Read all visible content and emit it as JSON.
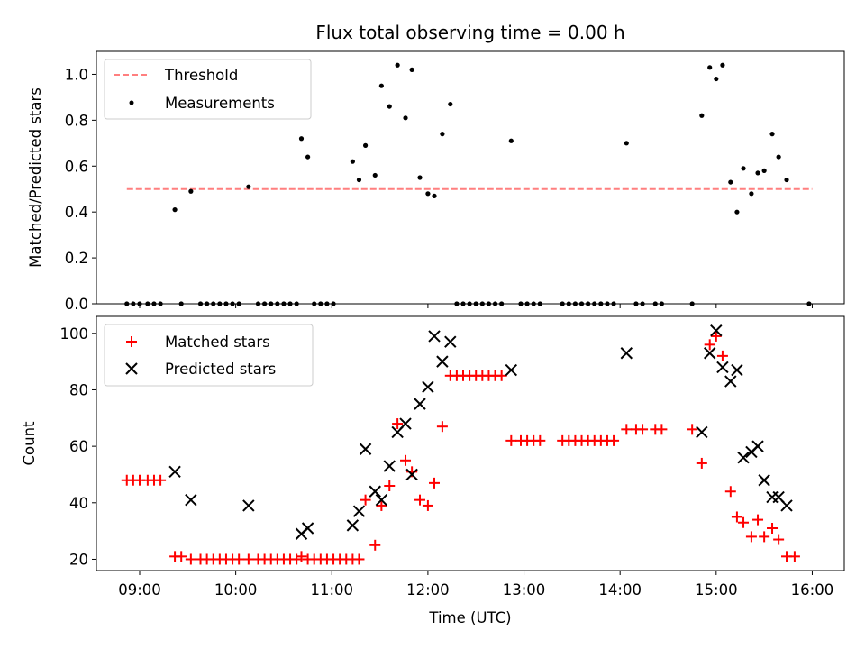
{
  "figure": {
    "title": "Flux total observing time = 0.00 h",
    "xlabel": "Time (UTC)"
  },
  "colors": {
    "threshold": "#ff7f7f",
    "measurements": "#000000",
    "matched": "#ff0000",
    "predicted": "#000000"
  },
  "chart_data": [
    {
      "type": "scatter",
      "panel": "top",
      "ylabel": "Matched/Predicted stars",
      "xlim": [
        "08:33",
        "16:20"
      ],
      "ylim": [
        0,
        1.1
      ],
      "yticks": [
        0.0,
        0.2,
        0.4,
        0.6,
        0.8,
        1.0
      ],
      "ytick_labels": [
        "0.0",
        "0.2",
        "0.4",
        "0.6",
        "0.8",
        "1.0"
      ],
      "grid": false,
      "legend": {
        "placement": "top-left",
        "entries": [
          "Threshold",
          "Measurements"
        ]
      },
      "threshold": {
        "name": "Threshold",
        "y": 0.5,
        "x_range": [
          "08:52",
          "16:00"
        ],
        "style": "dashed"
      },
      "series": [
        {
          "name": "Measurements",
          "points": [
            [
              "08:52",
              0.0
            ],
            [
              "08:56",
              0.0
            ],
            [
              "09:00",
              0.0
            ],
            [
              "09:05",
              0.0
            ],
            [
              "09:09",
              0.0
            ],
            [
              "09:13",
              0.0
            ],
            [
              "09:22",
              0.41
            ],
            [
              "09:26",
              0.0
            ],
            [
              "09:32",
              0.49
            ],
            [
              "09:38",
              0.0
            ],
            [
              "09:42",
              0.0
            ],
            [
              "09:46",
              0.0
            ],
            [
              "09:50",
              0.0
            ],
            [
              "09:54",
              0.0
            ],
            [
              "09:58",
              0.0
            ],
            [
              "10:02",
              0.0
            ],
            [
              "10:08",
              0.51
            ],
            [
              "10:14",
              0.0
            ],
            [
              "10:18",
              0.0
            ],
            [
              "10:22",
              0.0
            ],
            [
              "10:26",
              0.0
            ],
            [
              "10:30",
              0.0
            ],
            [
              "10:34",
              0.0
            ],
            [
              "10:38",
              0.0
            ],
            [
              "10:41",
              0.72
            ],
            [
              "10:45",
              0.64
            ],
            [
              "10:49",
              0.0
            ],
            [
              "10:53",
              0.0
            ],
            [
              "10:57",
              0.0
            ],
            [
              "11:01",
              0.0
            ],
            [
              "11:13",
              0.62
            ],
            [
              "11:17",
              0.54
            ],
            [
              "11:21",
              0.69
            ],
            [
              "11:27",
              0.56
            ],
            [
              "11:31",
              0.95
            ],
            [
              "11:36",
              0.86
            ],
            [
              "11:41",
              1.04
            ],
            [
              "11:46",
              0.81
            ],
            [
              "11:50",
              1.02
            ],
            [
              "11:55",
              0.55
            ],
            [
              "12:00",
              0.48
            ],
            [
              "12:04",
              0.47
            ],
            [
              "12:09",
              0.74
            ],
            [
              "12:14",
              0.87
            ],
            [
              "12:18",
              0.0
            ],
            [
              "12:22",
              0.0
            ],
            [
              "12:26",
              0.0
            ],
            [
              "12:30",
              0.0
            ],
            [
              "12:34",
              0.0
            ],
            [
              "12:38",
              0.0
            ],
            [
              "12:42",
              0.0
            ],
            [
              "12:46",
              0.0
            ],
            [
              "12:52",
              0.71
            ],
            [
              "12:58",
              0.0
            ],
            [
              "13:02",
              0.0
            ],
            [
              "13:06",
              0.0
            ],
            [
              "13:10",
              0.0
            ],
            [
              "13:24",
              0.0
            ],
            [
              "13:28",
              0.0
            ],
            [
              "13:32",
              0.0
            ],
            [
              "13:36",
              0.0
            ],
            [
              "13:40",
              0.0
            ],
            [
              "13:44",
              0.0
            ],
            [
              "13:48",
              0.0
            ],
            [
              "13:52",
              0.0
            ],
            [
              "13:56",
              0.0
            ],
            [
              "14:04",
              0.7
            ],
            [
              "14:10",
              0.0
            ],
            [
              "14:14",
              0.0
            ],
            [
              "14:22",
              0.0
            ],
            [
              "14:26",
              0.0
            ],
            [
              "14:45",
              0.0
            ],
            [
              "14:51",
              0.82
            ],
            [
              "14:56",
              1.03
            ],
            [
              "15:00",
              0.98
            ],
            [
              "15:04",
              1.04
            ],
            [
              "15:09",
              0.53
            ],
            [
              "15:13",
              0.4
            ],
            [
              "15:17",
              0.59
            ],
            [
              "15:22",
              0.48
            ],
            [
              "15:26",
              0.57
            ],
            [
              "15:30",
              0.58
            ],
            [
              "15:35",
              0.74
            ],
            [
              "15:39",
              0.64
            ],
            [
              "15:44",
              0.54
            ],
            [
              "15:58",
              0.0
            ]
          ]
        }
      ]
    },
    {
      "type": "scatter",
      "panel": "bottom",
      "ylabel": "Count",
      "xlabel": "Time (UTC)",
      "xlim": [
        "08:33",
        "16:20"
      ],
      "ylim": [
        16,
        106
      ],
      "yticks": [
        20,
        40,
        60,
        80,
        100
      ],
      "ytick_labels": [
        "20",
        "40",
        "60",
        "80",
        "100"
      ],
      "xticks": [
        "09:00",
        "10:00",
        "11:00",
        "12:00",
        "13:00",
        "14:00",
        "15:00",
        "16:00"
      ],
      "xtick_labels": [
        "09:00",
        "10:00",
        "11:00",
        "12:00",
        "13:00",
        "14:00",
        "15:00",
        "16:00"
      ],
      "grid": false,
      "legend": {
        "placement": "top-left",
        "entries": [
          "Matched stars",
          "Predicted stars"
        ]
      },
      "series": [
        {
          "name": "Matched stars",
          "marker": "plus",
          "points": [
            [
              "08:52",
              48
            ],
            [
              "08:56",
              48
            ],
            [
              "09:00",
              48
            ],
            [
              "09:05",
              48
            ],
            [
              "09:09",
              48
            ],
            [
              "09:13",
              48
            ],
            [
              "09:22",
              21
            ],
            [
              "09:26",
              21
            ],
            [
              "09:32",
              20
            ],
            [
              "09:38",
              20
            ],
            [
              "09:42",
              20
            ],
            [
              "09:46",
              20
            ],
            [
              "09:50",
              20
            ],
            [
              "09:54",
              20
            ],
            [
              "09:58",
              20
            ],
            [
              "10:02",
              20
            ],
            [
              "10:08",
              20
            ],
            [
              "10:14",
              20
            ],
            [
              "10:18",
              20
            ],
            [
              "10:22",
              20
            ],
            [
              "10:26",
              20
            ],
            [
              "10:30",
              20
            ],
            [
              "10:34",
              20
            ],
            [
              "10:38",
              20
            ],
            [
              "10:41",
              21
            ],
            [
              "10:45",
              20
            ],
            [
              "10:49",
              20
            ],
            [
              "10:53",
              20
            ],
            [
              "10:57",
              20
            ],
            [
              "11:01",
              20
            ],
            [
              "11:05",
              20
            ],
            [
              "11:09",
              20
            ],
            [
              "11:13",
              20
            ],
            [
              "11:17",
              20
            ],
            [
              "11:21",
              41
            ],
            [
              "11:27",
              25
            ],
            [
              "11:31",
              39
            ],
            [
              "11:36",
              46
            ],
            [
              "11:41",
              68
            ],
            [
              "11:46",
              55
            ],
            [
              "11:50",
              51
            ],
            [
              "11:55",
              41
            ],
            [
              "12:00",
              39
            ],
            [
              "12:04",
              47
            ],
            [
              "12:09",
              67
            ],
            [
              "12:14",
              85
            ],
            [
              "12:18",
              85
            ],
            [
              "12:22",
              85
            ],
            [
              "12:26",
              85
            ],
            [
              "12:30",
              85
            ],
            [
              "12:34",
              85
            ],
            [
              "12:38",
              85
            ],
            [
              "12:42",
              85
            ],
            [
              "12:46",
              85
            ],
            [
              "12:52",
              62
            ],
            [
              "12:58",
              62
            ],
            [
              "13:02",
              62
            ],
            [
              "13:06",
              62
            ],
            [
              "13:10",
              62
            ],
            [
              "13:24",
              62
            ],
            [
              "13:28",
              62
            ],
            [
              "13:32",
              62
            ],
            [
              "13:36",
              62
            ],
            [
              "13:40",
              62
            ],
            [
              "13:44",
              62
            ],
            [
              "13:48",
              62
            ],
            [
              "13:52",
              62
            ],
            [
              "13:56",
              62
            ],
            [
              "14:04",
              66
            ],
            [
              "14:10",
              66
            ],
            [
              "14:14",
              66
            ],
            [
              "14:22",
              66
            ],
            [
              "14:26",
              66
            ],
            [
              "14:45",
              66
            ],
            [
              "14:51",
              54
            ],
            [
              "14:56",
              96
            ],
            [
              "15:00",
              99
            ],
            [
              "15:04",
              92
            ],
            [
              "15:09",
              44
            ],
            [
              "15:13",
              35
            ],
            [
              "15:17",
              33
            ],
            [
              "15:22",
              28
            ],
            [
              "15:26",
              34
            ],
            [
              "15:30",
              28
            ],
            [
              "15:35",
              31
            ],
            [
              "15:39",
              27
            ],
            [
              "15:44",
              21
            ],
            [
              "15:49",
              21
            ]
          ]
        },
        {
          "name": "Predicted stars",
          "marker": "x",
          "points": [
            [
              "09:22",
              51
            ],
            [
              "09:32",
              41
            ],
            [
              "10:08",
              39
            ],
            [
              "10:41",
              29
            ],
            [
              "10:45",
              31
            ],
            [
              "11:13",
              32
            ],
            [
              "11:17",
              37
            ],
            [
              "11:21",
              59
            ],
            [
              "11:27",
              44
            ],
            [
              "11:31",
              41
            ],
            [
              "11:36",
              53
            ],
            [
              "11:41",
              65
            ],
            [
              "11:46",
              68
            ],
            [
              "11:50",
              50
            ],
            [
              "11:55",
              75
            ],
            [
              "12:00",
              81
            ],
            [
              "12:04",
              99
            ],
            [
              "12:09",
              90
            ],
            [
              "12:14",
              97
            ],
            [
              "12:52",
              87
            ],
            [
              "14:04",
              93
            ],
            [
              "14:51",
              65
            ],
            [
              "14:56",
              93
            ],
            [
              "15:00",
              101
            ],
            [
              "15:04",
              88
            ],
            [
              "15:09",
              83
            ],
            [
              "15:13",
              87
            ],
            [
              "15:17",
              56
            ],
            [
              "15:22",
              58
            ],
            [
              "15:26",
              60
            ],
            [
              "15:30",
              48
            ],
            [
              "15:35",
              42
            ],
            [
              "15:39",
              42
            ],
            [
              "15:44",
              39
            ]
          ]
        }
      ]
    }
  ]
}
